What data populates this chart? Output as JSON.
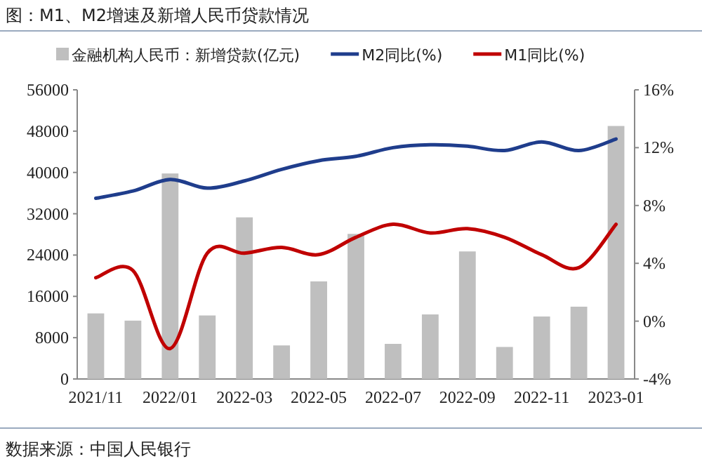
{
  "chart_data": {
    "type": "bar",
    "title": "图：M1、M2增速及新增人民币贷款情况",
    "categories": [
      "2021/11",
      null,
      "2022/01",
      null,
      "2022-03",
      null,
      "2022-05",
      null,
      "2022-07",
      null,
      "2022-09",
      null,
      "2022-11",
      null,
      "2023-01"
    ],
    "series": [
      {
        "name": "金融机构人民币：新增贷款(亿元)",
        "color": "#bfbfbf",
        "values": [
          12700,
          11300,
          39800,
          12300,
          31300,
          6500,
          18900,
          28100,
          6800,
          12500,
          24700,
          6200,
          12100,
          14000,
          49000
        ]
      },
      {
        "name": "M2同比(%)",
        "type": "line",
        "axis": "y2",
        "color": "#1f3d8c",
        "values": [
          8.5,
          9.0,
          9.8,
          9.2,
          9.7,
          10.5,
          11.1,
          11.4,
          12.0,
          12.2,
          12.1,
          11.8,
          12.4,
          11.8,
          12.6
        ]
      },
      {
        "name": "M1同比(%)",
        "type": "line",
        "axis": "y2",
        "color": "#c00000",
        "values": [
          3.0,
          3.5,
          -1.9,
          4.7,
          4.7,
          5.1,
          4.6,
          5.8,
          6.7,
          6.1,
          6.4,
          5.8,
          4.6,
          3.7,
          6.7
        ]
      }
    ],
    "ylim": [
      0,
      56000
    ],
    "yticks": [
      0,
      8000,
      16000,
      24000,
      32000,
      40000,
      48000,
      56000
    ],
    "y2lim": [
      -4,
      16
    ],
    "y2ticks": [
      {
        "value": -4,
        "label": "-4%"
      },
      {
        "value": 0,
        "label": "0%"
      },
      {
        "value": 4,
        "label": "4%"
      },
      {
        "value": 8,
        "label": "8%"
      },
      {
        "value": 12,
        "label": "12%"
      },
      {
        "value": 16,
        "label": "16%"
      }
    ],
    "legend": "top",
    "grid": false,
    "annotations": [
      "数据来源：中国人民银行"
    ]
  }
}
